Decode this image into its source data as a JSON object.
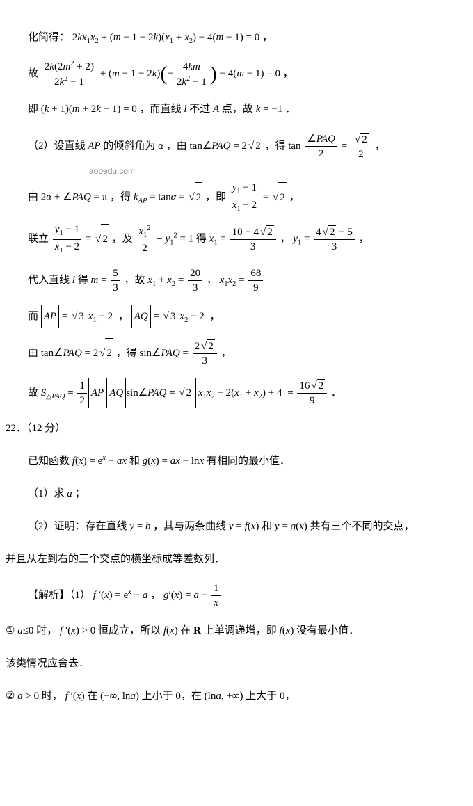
{
  "watermark": "aooedu.com",
  "lines": {
    "l1": "化简得：",
    "l1b": "，",
    "l2a": "故 ",
    "l2b": "，",
    "l3a": "即",
    "l3b": "，而直线 ",
    "l3c": " 不过 ",
    "l3d": " 点，故 ",
    "l3e": "．",
    "l4a": "（2）设直线 ",
    "l4b": " 的倾斜角为 ",
    "l4c": "，由 ",
    "l4d": "，得 ",
    "l4e": "，",
    "l5a": "由 ",
    "l5b": "，得 ",
    "l5c": "，即 ",
    "l5d": "，",
    "l6a": "联立 ",
    "l6b": "，及 ",
    "l6c": " 得 ",
    "l6d": "，",
    "l6e": "，",
    "l7a": "代入直线 ",
    "l7b": " 得 ",
    "l7c": "，故 ",
    "l7d": "，",
    "l8a": "而 ",
    "l8b": "，",
    "l8c": "，",
    "l9a": "由 ",
    "l9b": "，得 ",
    "l9c": "，",
    "l10a": "故 ",
    "l10b": "．",
    "q22": "22．（12 分）",
    "q22a": "已知函数 ",
    "q22b": " 和 ",
    "q22c": " 有相同的最小值．",
    "q22p1": "（1）求 ",
    "q22p1b": "；",
    "q22p2a": "（2）证明：存在直线 ",
    "q22p2b": "，其与两条曲线 ",
    "q22p2c": " 和 ",
    "q22p2d": " 共有三个不同的交点，",
    "q22p3": "并且从左到右的三个交点的横坐标成等差数列．",
    "sol": "【解析】（1）",
    "solb": "，",
    "c1a": "① ",
    "c1b": " 时，",
    "c1c": " 恒成立，所以 ",
    "c1d": " 在 ",
    "c1e": " 上单调递增，即 ",
    "c1f": " 没有最小值．",
    "c2": "该类情况应舍去．",
    "c3a": "② ",
    "c3b": " 时，",
    "c3c": " 在 ",
    "c3d": " 上小于 0，在 ",
    "c3e": " 上大于 0，"
  },
  "math": {
    "fontFamily": "Times New Roman, serif",
    "color": "#000000",
    "primary_sqrt_values": [
      "2",
      "3"
    ],
    "key_constants": [
      "2k",
      "m-1-2k",
      "4(m-1)",
      "2m²+2",
      "2k²-1",
      "4km",
      "k+1",
      "m+2k-1",
      "k=-1",
      "2√2",
      "√2/2",
      "2α+∠PAQ=π",
      "√2",
      "5/3",
      "20/3",
      "68/9",
      "√3",
      "2√2/3",
      "16√2/9",
      "eˣ-ax",
      "ax-lnx",
      "eˣ-a",
      "a-1/x",
      "(-∞,lna)",
      "(lna,+∞)"
    ]
  }
}
